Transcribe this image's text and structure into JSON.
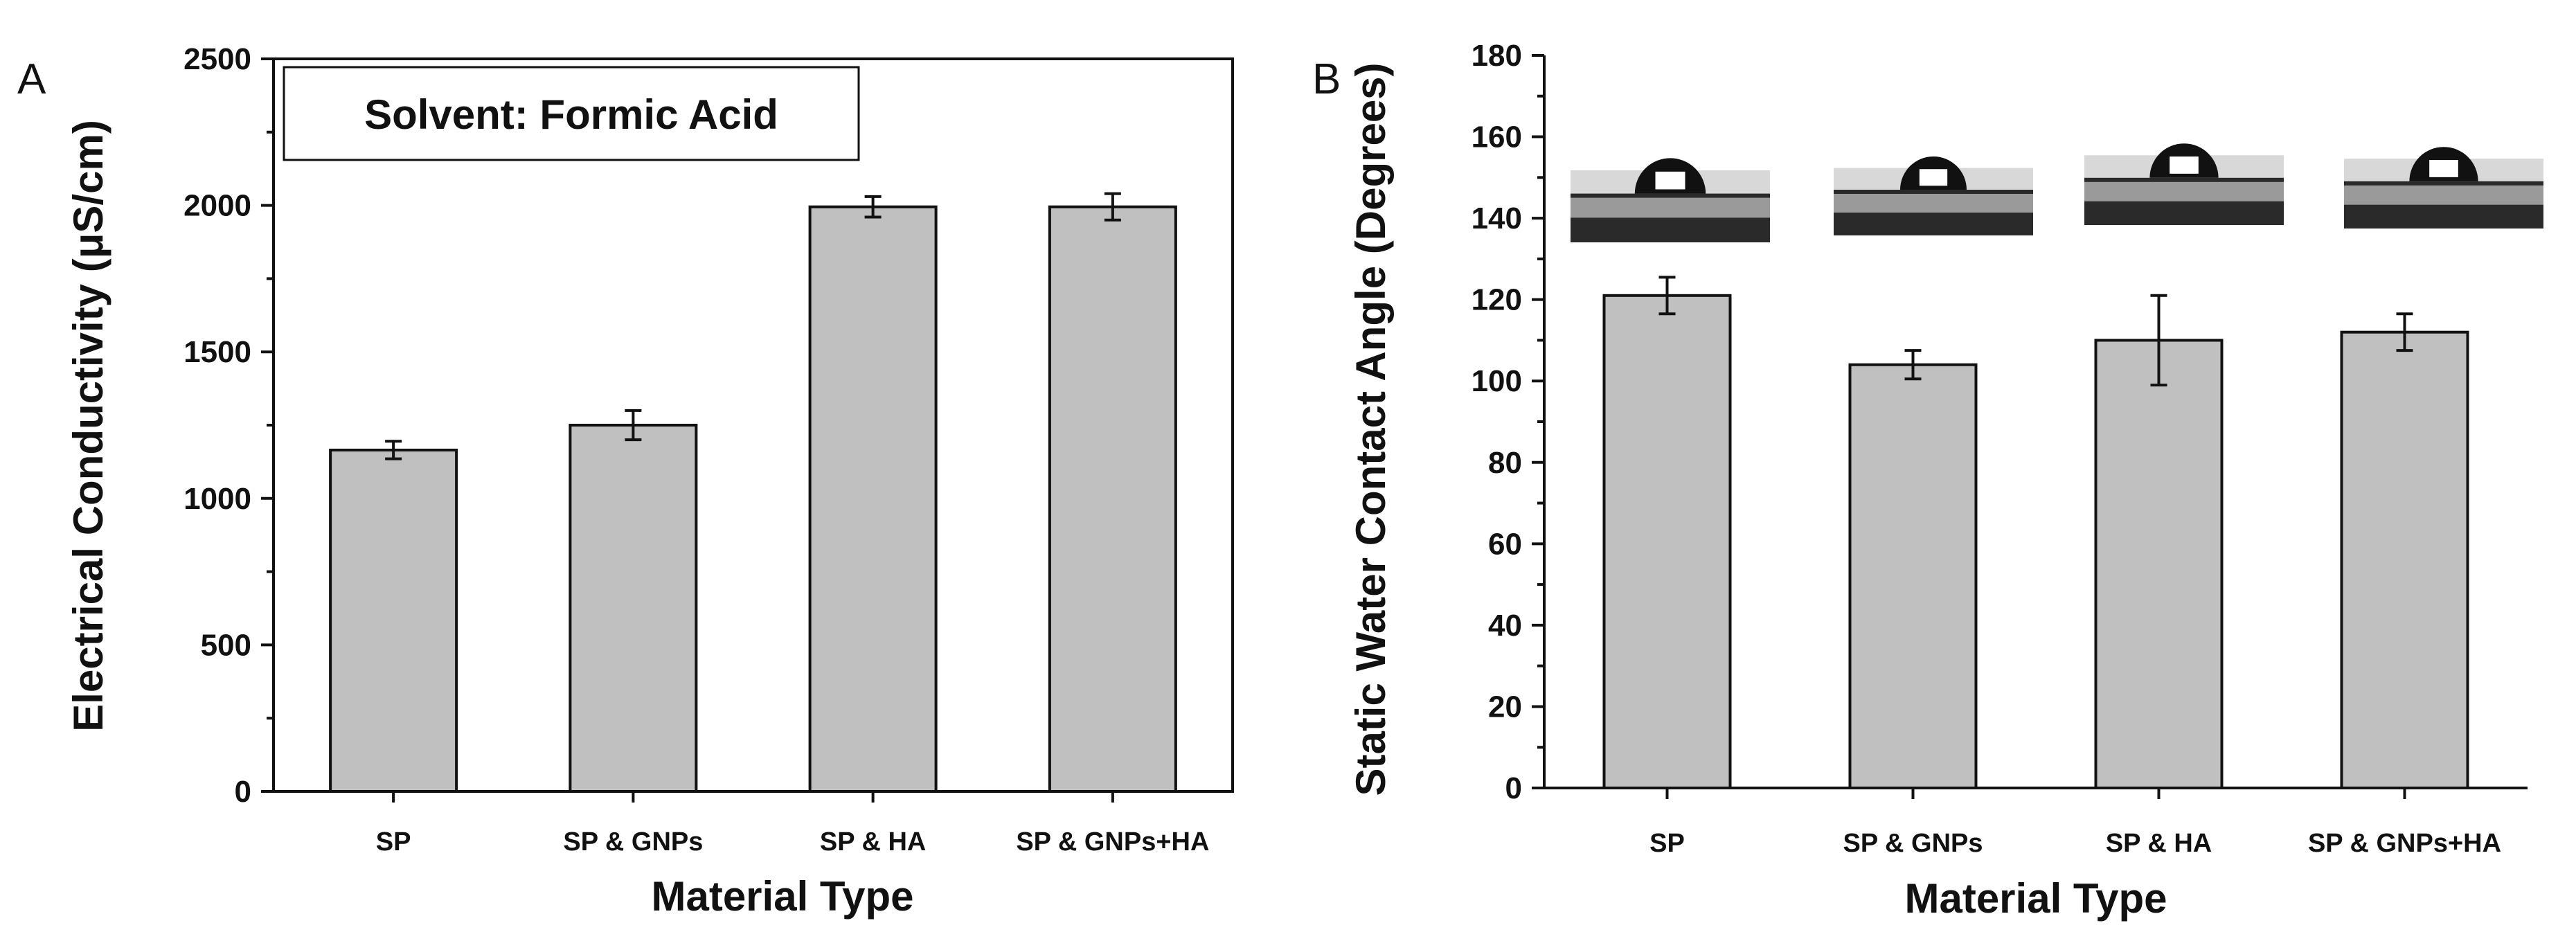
{
  "chart_data": [
    {
      "type": "bar",
      "panel_label": "A",
      "annotation": "Solvent: Formic Acid",
      "categories": [
        "SP",
        "SP & GNPs",
        "SP & HA",
        "SP & GNPs+HA"
      ],
      "values": [
        1165,
        1250,
        1995,
        1995
      ],
      "errors": [
        30,
        50,
        35,
        45
      ],
      "xlabel": "Material Type",
      "ylabel": "Electrical Conductivity (μS/cm)",
      "ylim": [
        0,
        2500
      ],
      "yticks": [
        0,
        500,
        1000,
        1500,
        2000,
        2500
      ],
      "bar_color": "#c0c0c0"
    },
    {
      "type": "bar",
      "panel_label": "B",
      "categories": [
        "SP",
        "SP & GNPs",
        "SP & HA",
        "SP & GNPs+HA"
      ],
      "values": [
        121,
        104,
        110,
        112
      ],
      "errors": [
        4.5,
        3.5,
        11,
        4.5
      ],
      "xlabel": "Material Type",
      "ylabel": "Static Water Contact Angle (Degrees)",
      "ylim": [
        0,
        180
      ],
      "yticks": [
        0,
        20,
        40,
        60,
        80,
        100,
        120,
        140,
        160,
        180
      ],
      "insets": [
        "water-droplet-photo",
        "water-droplet-photo",
        "water-droplet-photo",
        "water-droplet-photo"
      ],
      "bar_color": "#c0c0c0"
    }
  ]
}
